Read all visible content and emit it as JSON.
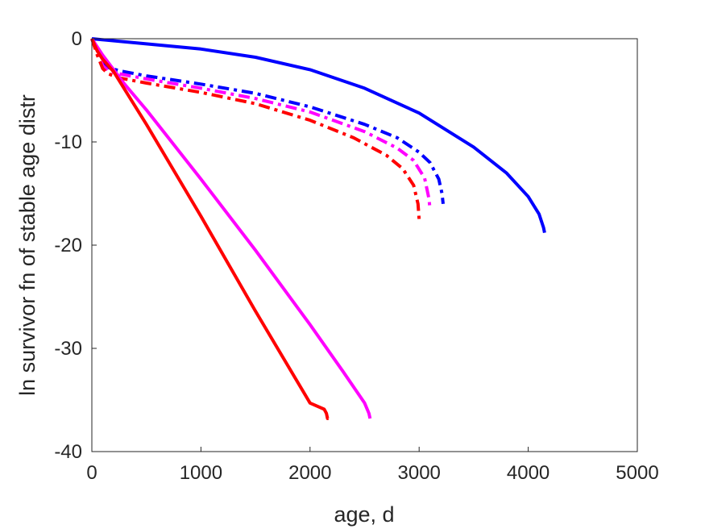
{
  "chart_data": {
    "type": "line",
    "title": "",
    "xlabel": "age, d",
    "ylabel": "ln survivor fn of stable age distr",
    "xlim": [
      0,
      5000
    ],
    "ylim": [
      -40,
      0
    ],
    "xticks": [
      "0",
      "1000",
      "2000",
      "3000",
      "4000",
      "5000"
    ],
    "yticks": [
      "0",
      "-10",
      "-20",
      "-30",
      "-40"
    ],
    "grid": false,
    "legend": "none",
    "series": [
      {
        "color": "#0000ff",
        "style": "solid",
        "x": [
          0,
          500,
          1000,
          1500,
          2000,
          2500,
          3000,
          3500,
          3800,
          4000,
          4100,
          4140,
          4150
        ],
        "y": [
          0,
          -0.5,
          -1.0,
          -1.8,
          -3.0,
          -4.8,
          -7.2,
          -10.5,
          -13.0,
          -15.3,
          -17.0,
          -18.3,
          -18.8
        ]
      },
      {
        "color": "#0000ff",
        "style": "dashdot",
        "x": [
          0,
          50,
          100,
          150,
          250,
          500,
          1000,
          1500,
          2000,
          2500,
          2800,
          3000,
          3100,
          3180,
          3210,
          3220
        ],
        "y": [
          0,
          -1.2,
          -2.3,
          -2.8,
          -3.1,
          -3.6,
          -4.4,
          -5.3,
          -6.6,
          -8.3,
          -9.6,
          -11.0,
          -12.0,
          -13.6,
          -15.0,
          -16.0
        ]
      },
      {
        "color": "#ff00ff",
        "style": "dashdot",
        "x": [
          0,
          50,
          100,
          150,
          250,
          500,
          1000,
          1500,
          2000,
          2500,
          2800,
          2950,
          3050,
          3090,
          3100
        ],
        "y": [
          0,
          -1.4,
          -2.6,
          -3.1,
          -3.4,
          -3.9,
          -4.8,
          -5.8,
          -7.1,
          -9.0,
          -10.6,
          -11.8,
          -13.5,
          -15.5,
          -16.5
        ]
      },
      {
        "color": "#ff0000",
        "style": "dashdot",
        "x": [
          0,
          50,
          100,
          150,
          250,
          500,
          1000,
          1500,
          2000,
          2400,
          2700,
          2850,
          2950,
          2990,
          3000
        ],
        "y": [
          0,
          -1.6,
          -2.9,
          -3.4,
          -3.8,
          -4.3,
          -5.2,
          -6.3,
          -7.9,
          -9.6,
          -11.3,
          -12.6,
          -14.2,
          -16.0,
          -17.5
        ]
      },
      {
        "color": "#ff00ff",
        "style": "solid",
        "x": [
          0,
          100,
          200,
          300,
          500,
          1000,
          1500,
          2000,
          2300,
          2500,
          2540,
          2550
        ],
        "y": [
          0,
          -1.6,
          -3.0,
          -4.4,
          -6.9,
          -13.6,
          -20.5,
          -27.7,
          -32.2,
          -35.3,
          -36.3,
          -36.8
        ]
      },
      {
        "color": "#ff0000",
        "style": "solid",
        "x": [
          0,
          50,
          100,
          200,
          300,
          500,
          1000,
          1500,
          2000,
          2130,
          2150,
          2160,
          2170
        ],
        "y": [
          0,
          -1.2,
          -2.0,
          -3.2,
          -4.9,
          -8.3,
          -17.2,
          -26.4,
          -35.3,
          -35.9,
          -36.3,
          -36.8,
          -36.8
        ]
      }
    ]
  }
}
